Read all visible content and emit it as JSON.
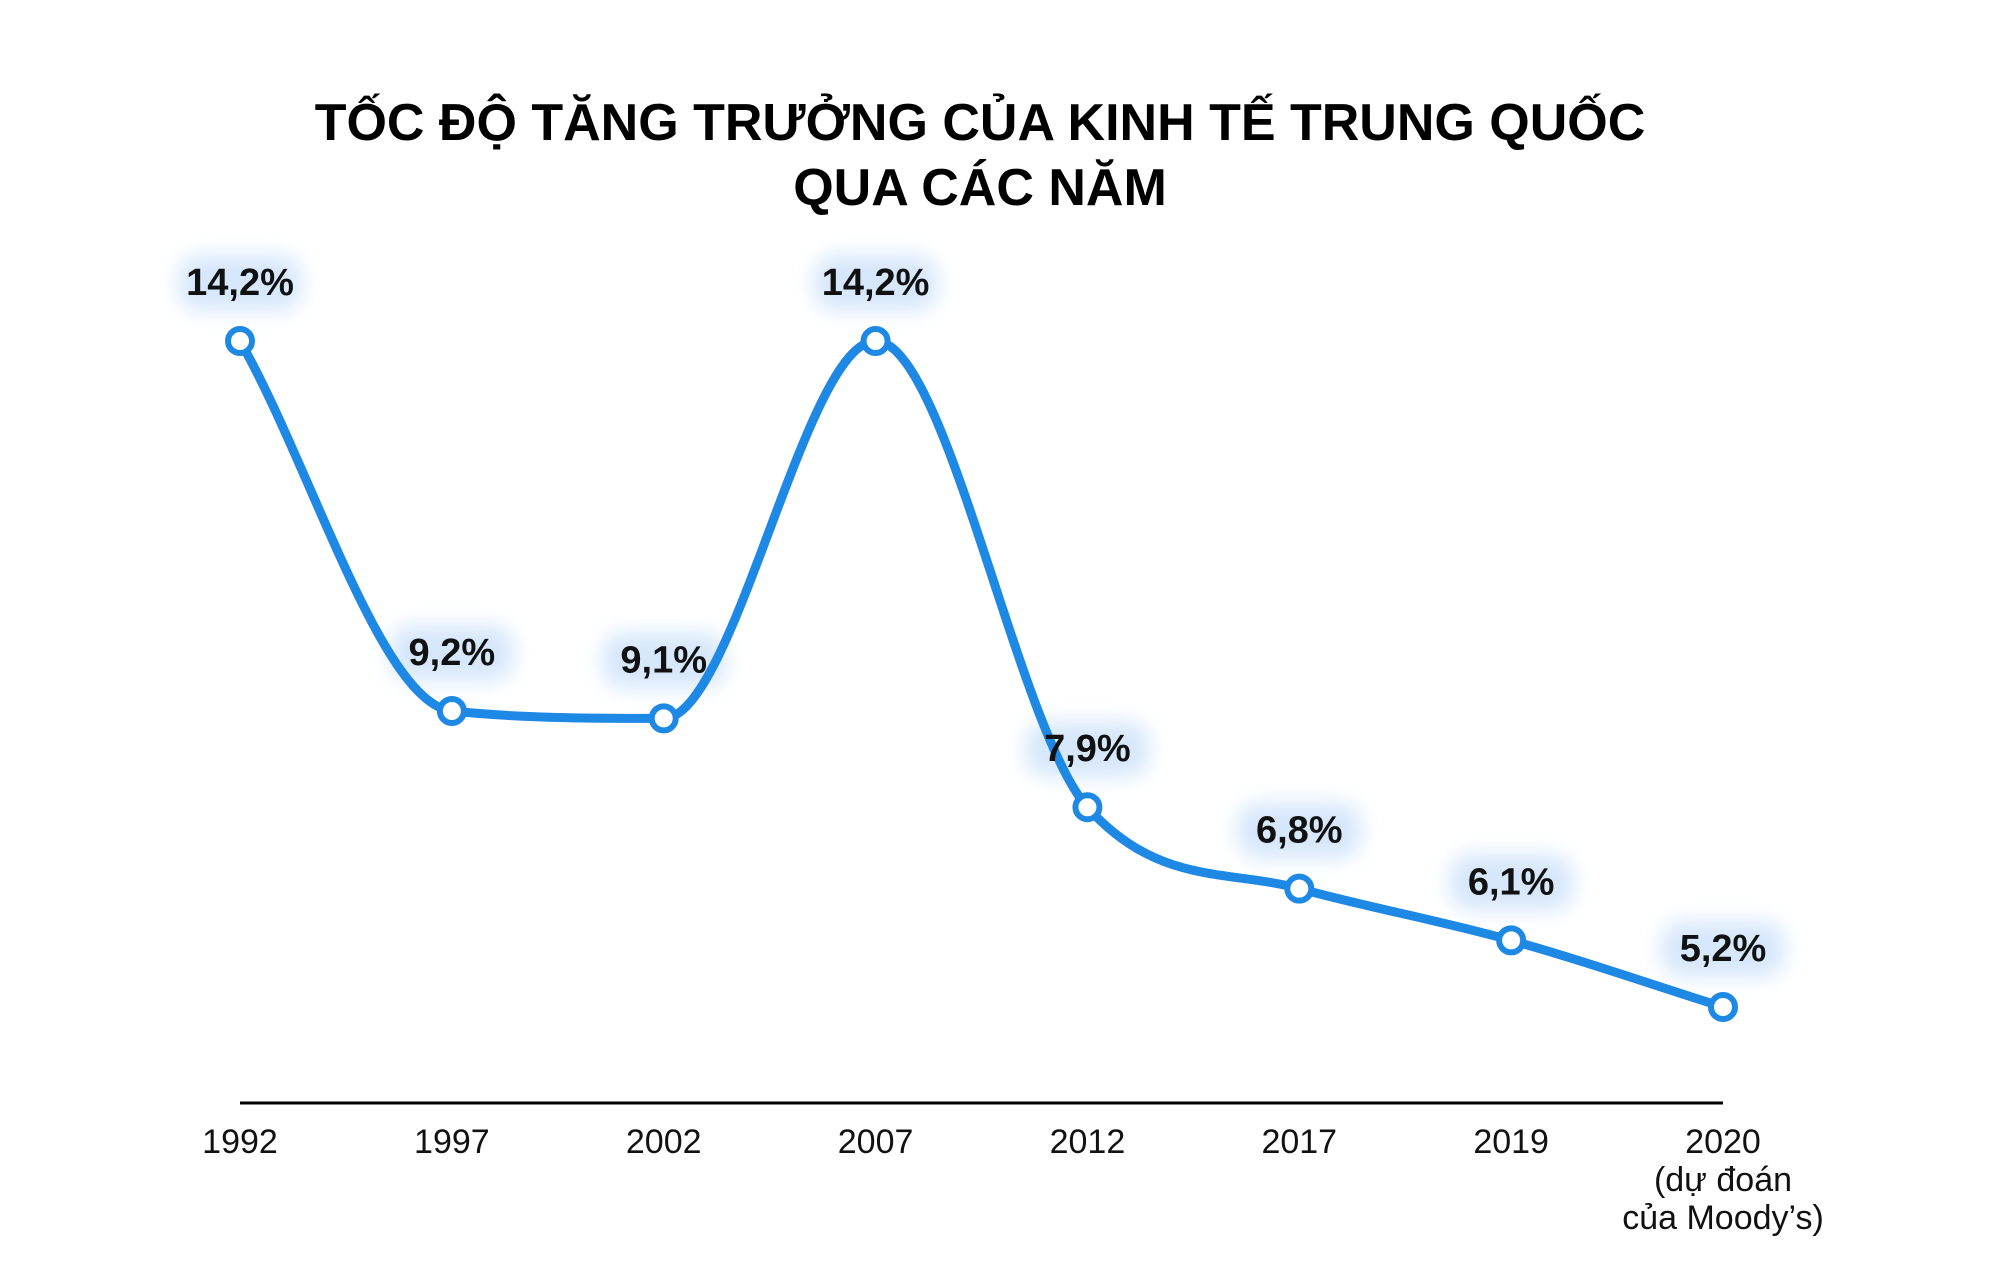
{
  "chart_data": {
    "type": "line",
    "title": [
      "TỐC ĐỘ TĂNG TRƯỞNG CỦA KINH TẾ TRUNG QUỐC",
      "QUA CÁC NĂM"
    ],
    "categories": [
      [
        "1992"
      ],
      [
        "1997"
      ],
      [
        "2002"
      ],
      [
        "2007"
      ],
      [
        "2012"
      ],
      [
        "2017"
      ],
      [
        "2019"
      ],
      [
        "2020",
        "(dự đoán",
        "của Moody’s)"
      ]
    ],
    "values": [
      14.2,
      9.2,
      9.1,
      14.2,
      7.9,
      6.8,
      6.1,
      5.2
    ],
    "data_labels": [
      "14,2%",
      "9,2%",
      "9,1%",
      "14,2%",
      "7,9%",
      "6,8%",
      "6,1%",
      "5,2%"
    ],
    "xlabel": "",
    "ylabel": "",
    "grid": false,
    "legend": "none",
    "colors": {
      "line": "#1e88e5",
      "marker_fill": "#ffffff",
      "axis": "#000000",
      "label_glow": "#cfe3fb"
    }
  }
}
